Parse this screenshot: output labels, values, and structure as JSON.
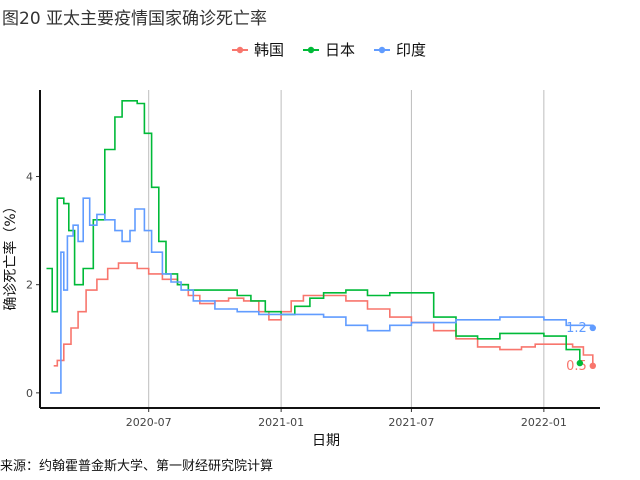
{
  "figure": {
    "title": "图20 亚太主要疫情国家确诊死亡率",
    "source": "来源：约翰霍普金斯大学、第一财经研究院计算"
  },
  "chart_data": {
    "type": "line",
    "title": "",
    "xlabel": "日期",
    "ylabel": "确诊死亡率（%）",
    "x_ticks": [
      {
        "date": "2020-07-01",
        "label": "2020-07"
      },
      {
        "date": "2021-01-01",
        "label": "2021-01"
      },
      {
        "date": "2021-07-01",
        "label": "2021-07"
      },
      {
        "date": "2022-01-01",
        "label": "2022-01"
      }
    ],
    "x_range": [
      "2020-02-01",
      "2022-03-20"
    ],
    "y_ticks": [
      0,
      2,
      4
    ],
    "ylim": [
      -0.28,
      5.6
    ],
    "grid": "vertical major lines",
    "legend_position": "top",
    "series": [
      {
        "name": "韩国",
        "color": "#F8766D",
        "end_label": "0.5",
        "points": [
          [
            "2020-02-20",
            0.5
          ],
          [
            "2020-02-25",
            0.6
          ],
          [
            "2020-03-05",
            0.9
          ],
          [
            "2020-03-15",
            1.2
          ],
          [
            "2020-03-25",
            1.5
          ],
          [
            "2020-04-05",
            1.9
          ],
          [
            "2020-04-20",
            2.1
          ],
          [
            "2020-05-05",
            2.3
          ],
          [
            "2020-05-20",
            2.4
          ],
          [
            "2020-06-15",
            2.3
          ],
          [
            "2020-07-01",
            2.2
          ],
          [
            "2020-07-20",
            2.1
          ],
          [
            "2020-08-10",
            2.0
          ],
          [
            "2020-08-25",
            1.8
          ],
          [
            "2020-09-10",
            1.65
          ],
          [
            "2020-10-01",
            1.7
          ],
          [
            "2020-10-20",
            1.75
          ],
          [
            "2020-11-10",
            1.7
          ],
          [
            "2020-12-01",
            1.5
          ],
          [
            "2020-12-15",
            1.35
          ],
          [
            "2021-01-01",
            1.5
          ],
          [
            "2021-01-15",
            1.7
          ],
          [
            "2021-02-01",
            1.8
          ],
          [
            "2021-03-01",
            1.8
          ],
          [
            "2021-04-01",
            1.7
          ],
          [
            "2021-05-01",
            1.55
          ],
          [
            "2021-06-01",
            1.4
          ],
          [
            "2021-07-01",
            1.3
          ],
          [
            "2021-08-01",
            1.15
          ],
          [
            "2021-09-01",
            1.0
          ],
          [
            "2021-10-01",
            0.85
          ],
          [
            "2021-11-01",
            0.8
          ],
          [
            "2021-12-01",
            0.85
          ],
          [
            "2021-12-20",
            0.9
          ],
          [
            "2022-01-15",
            0.9
          ],
          [
            "2022-02-10",
            0.85
          ],
          [
            "2022-02-25",
            0.7
          ],
          [
            "2022-03-10",
            0.5
          ]
        ]
      },
      {
        "name": "日本",
        "color": "#00BA38",
        "end_label": "",
        "points": [
          [
            "2020-02-10",
            2.3
          ],
          [
            "2020-02-18",
            1.5
          ],
          [
            "2020-02-25",
            3.6
          ],
          [
            "2020-03-05",
            3.5
          ],
          [
            "2020-03-12",
            3.0
          ],
          [
            "2020-03-20",
            2.0
          ],
          [
            "2020-04-01",
            2.3
          ],
          [
            "2020-04-15",
            3.2
          ],
          [
            "2020-05-01",
            4.5
          ],
          [
            "2020-05-15",
            5.1
          ],
          [
            "2020-05-25",
            5.4
          ],
          [
            "2020-06-15",
            5.35
          ],
          [
            "2020-06-25",
            4.8
          ],
          [
            "2020-07-05",
            3.8
          ],
          [
            "2020-07-15",
            2.8
          ],
          [
            "2020-07-25",
            2.2
          ],
          [
            "2020-08-10",
            2.0
          ],
          [
            "2020-08-25",
            1.9
          ],
          [
            "2020-10-01",
            1.9
          ],
          [
            "2020-11-01",
            1.8
          ],
          [
            "2020-11-20",
            1.7
          ],
          [
            "2020-12-10",
            1.5
          ],
          [
            "2021-01-01",
            1.45
          ],
          [
            "2021-01-20",
            1.6
          ],
          [
            "2021-02-10",
            1.75
          ],
          [
            "2021-03-01",
            1.85
          ],
          [
            "2021-04-01",
            1.9
          ],
          [
            "2021-05-01",
            1.8
          ],
          [
            "2021-06-01",
            1.85
          ],
          [
            "2021-07-01",
            1.85
          ],
          [
            "2021-08-01",
            1.4
          ],
          [
            "2021-09-01",
            1.05
          ],
          [
            "2021-10-01",
            1.0
          ],
          [
            "2021-11-01",
            1.1
          ],
          [
            "2021-12-01",
            1.1
          ],
          [
            "2022-01-01",
            1.05
          ],
          [
            "2022-02-01",
            0.8
          ],
          [
            "2022-02-20",
            0.55
          ]
        ]
      },
      {
        "name": "印度",
        "color": "#619CFF",
        "end_label": "1.2",
        "points": [
          [
            "2020-02-15",
            0.0
          ],
          [
            "2020-02-25",
            0.0
          ],
          [
            "2020-03-01",
            2.6
          ],
          [
            "2020-03-05",
            1.9
          ],
          [
            "2020-03-10",
            2.9
          ],
          [
            "2020-03-18",
            3.1
          ],
          [
            "2020-03-25",
            2.8
          ],
          [
            "2020-04-01",
            3.6
          ],
          [
            "2020-04-10",
            3.1
          ],
          [
            "2020-04-20",
            3.3
          ],
          [
            "2020-05-01",
            3.2
          ],
          [
            "2020-05-15",
            3.0
          ],
          [
            "2020-05-25",
            2.8
          ],
          [
            "2020-06-05",
            3.0
          ],
          [
            "2020-06-12",
            3.4
          ],
          [
            "2020-06-25",
            3.0
          ],
          [
            "2020-07-05",
            2.6
          ],
          [
            "2020-07-20",
            2.2
          ],
          [
            "2020-08-01",
            2.05
          ],
          [
            "2020-08-15",
            1.9
          ],
          [
            "2020-09-01",
            1.7
          ],
          [
            "2020-10-01",
            1.55
          ],
          [
            "2020-11-01",
            1.5
          ],
          [
            "2020-12-01",
            1.45
          ],
          [
            "2021-01-01",
            1.45
          ],
          [
            "2021-02-01",
            1.45
          ],
          [
            "2021-03-01",
            1.4
          ],
          [
            "2021-04-01",
            1.25
          ],
          [
            "2021-05-01",
            1.15
          ],
          [
            "2021-06-01",
            1.25
          ],
          [
            "2021-07-01",
            1.3
          ],
          [
            "2021-08-01",
            1.3
          ],
          [
            "2021-09-01",
            1.35
          ],
          [
            "2021-10-01",
            1.35
          ],
          [
            "2021-11-01",
            1.4
          ],
          [
            "2021-12-01",
            1.4
          ],
          [
            "2022-01-01",
            1.35
          ],
          [
            "2022-02-01",
            1.25
          ],
          [
            "2022-03-10",
            1.2
          ]
        ]
      }
    ]
  }
}
